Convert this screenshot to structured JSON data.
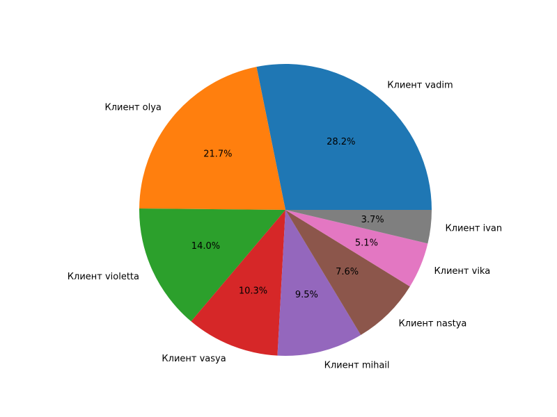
{
  "chart_data": {
    "type": "pie",
    "start_angle_deg": 0,
    "direction": "counterclockwise",
    "slices": [
      {
        "label": "Клиент vadim",
        "value": 28.2,
        "pct_label": "28.2%",
        "color": "#1f77b4"
      },
      {
        "label": "Клиент olya",
        "value": 21.7,
        "pct_label": "21.7%",
        "color": "#ff7f0e"
      },
      {
        "label": "Клиент violetta",
        "value": 14.0,
        "pct_label": "14.0%",
        "color": "#2ca02c"
      },
      {
        "label": "Клиент vasya",
        "value": 10.3,
        "pct_label": "10.3%",
        "color": "#d62728"
      },
      {
        "label": "Клиент mihail",
        "value": 9.5,
        "pct_label": "9.5%",
        "color": "#9467bd"
      },
      {
        "label": "Клиент nastya",
        "value": 7.6,
        "pct_label": "7.6%",
        "color": "#8c564b"
      },
      {
        "label": "Клиент vika",
        "value": 5.1,
        "pct_label": "5.1%",
        "color": "#e377c2"
      },
      {
        "label": "Клиент ivan",
        "value": 3.7,
        "pct_label": "3.7%",
        "color": "#7f7f7f"
      }
    ]
  }
}
